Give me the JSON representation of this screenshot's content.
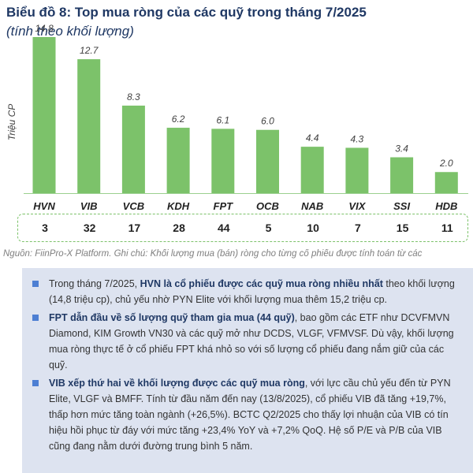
{
  "header": {
    "title": "Biểu đồ 8: Top mua ròng của các quỹ trong tháng 7/2025",
    "subtitle": "(tính theo khối lượng)"
  },
  "chart_data": {
    "type": "bar",
    "ylabel": "Triệu CP",
    "ylim": [
      0,
      16
    ],
    "grid": false,
    "bar_color": "#7cc26a",
    "label_color": "#404040",
    "categories": [
      "HVN",
      "VIB",
      "VCB",
      "KDH",
      "FPT",
      "OCB",
      "NAB",
      "VIX",
      "SSI",
      "HDB"
    ],
    "values": [
      14.8,
      12.7,
      8.3,
      6.2,
      6.1,
      6.0,
      4.4,
      4.3,
      3.4,
      2.0
    ],
    "value_labels": [
      "14.8",
      "12.7",
      "8.3",
      "6.2",
      "6.1",
      "6.0",
      "4.4",
      "4.3",
      "3.4",
      "2.0"
    ],
    "fund_counts": [
      "3",
      "32",
      "17",
      "28",
      "44",
      "5",
      "10",
      "7",
      "15",
      "11"
    ]
  },
  "source": "Nguồn: FiinPro-X Platform. Ghi chú: Khối lượng mua (bán) ròng cho từng cổ phiếu được tính toán từ các",
  "notes": [
    {
      "pre": "Trong tháng 7/2025, ",
      "bold": "HVN là cổ phiếu được các quỹ mua ròng nhiều nhất",
      "post": " theo khối lượng (14,8 triệu cp), chủ yếu nhờ PYN Elite với khối lượng mua thêm 15,2 triệu cp."
    },
    {
      "pre": "",
      "bold": "FPT dẫn đầu về số lượng quỹ tham gia mua (44 quỹ)",
      "post": ", bao gồm các ETF như DCVFMVN Diamond, KIM Growth VN30 và các quỹ mở như DCDS, VLGF, VFMVSF. Dù vậy, khối lượng mua ròng thực tế ở cổ phiếu FPT khá nhỏ so với số lượng cổ phiếu đang nắm giữ của các quỹ."
    },
    {
      "pre": "",
      "bold": "VIB xếp thứ hai về khối lượng được các quỹ mua ròng",
      "post": ", với lực cầu chủ yếu đến từ PYN Elite, VLGF và BMFF. Tính từ đầu năm đến nay (13/8/2025), cổ phiếu VIB đã tăng +19,7%, thấp hơn mức tăng toàn ngành (+26,5%). BCTC Q2/2025 cho thấy lợi nhuận của VIB có tín hiệu hồi phục từ đáy với mức tăng +23,4% YoY và +7,2% QoQ. Hệ số P/E và P/B của VIB cũng đang nằm dưới đường trung bình 5 năm."
    }
  ]
}
